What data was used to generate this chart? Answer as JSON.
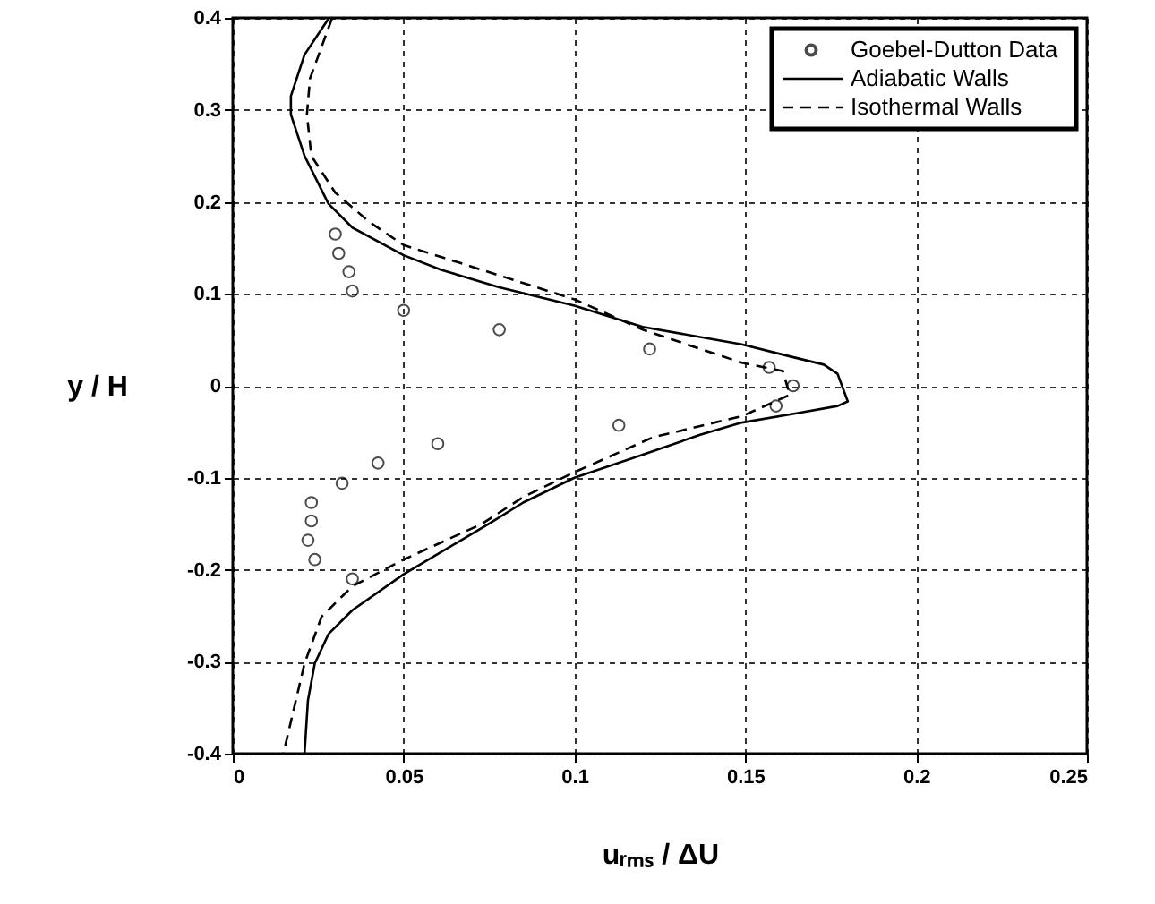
{
  "chart_data": {
    "type": "line",
    "xlabel": "uᵣₘₛ / ΔU",
    "ylabel": "y / H",
    "xlim": [
      0,
      0.25
    ],
    "ylim": [
      -0.4,
      0.4
    ],
    "xticks": [
      0,
      0.05,
      0.1,
      0.15,
      0.2,
      0.25
    ],
    "yticks": [
      -0.4,
      -0.3,
      -0.2,
      -0.1,
      0,
      0.1,
      0.2,
      0.3,
      0.4
    ],
    "grid": true,
    "legend": "top right",
    "series": [
      {
        "name": "Goebel-Dutton Data",
        "type": "scatter",
        "marker": "circle",
        "color": "#000000",
        "x": [
          0.03,
          0.031,
          0.034,
          0.035,
          0.05,
          0.078,
          0.122,
          0.157,
          0.164,
          0.159,
          0.113,
          0.06,
          0.0425,
          0.032,
          0.023,
          0.023,
          0.022,
          0.024,
          0.035
        ],
        "values": [
          0.165,
          0.144,
          0.124,
          0.103,
          0.082,
          0.061,
          0.04,
          0.02,
          0,
          -0.022,
          -0.043,
          -0.063,
          -0.084,
          -0.106,
          -0.127,
          -0.147,
          -0.168,
          -0.189,
          -0.21
        ]
      },
      {
        "name": "Adiabatic Walls",
        "line_style": "solid",
        "color": "#000000",
        "x": [
          0.028,
          0.021,
          0.017,
          0.017,
          0.021,
          0.028,
          0.035,
          0.05,
          0.061,
          0.078,
          0.1,
          0.12,
          0.149,
          0.163,
          0.173,
          0.177,
          0.18,
          0.177,
          0.165,
          0.149,
          0.137,
          0.12,
          0.1,
          0.085,
          0.075,
          0.05,
          0.035,
          0.028,
          0.024,
          0.022,
          0.021
        ],
        "values": [
          0.399,
          0.36,
          0.315,
          0.295,
          0.25,
          0.198,
          0.172,
          0.142,
          0.126,
          0.107,
          0.087,
          0.064,
          0.045,
          0.032,
          0.023,
          0.013,
          -0.017,
          -0.022,
          -0.03,
          -0.04,
          -0.053,
          -0.075,
          -0.1,
          -0.127,
          -0.15,
          -0.205,
          -0.244,
          -0.27,
          -0.302,
          -0.342,
          -0.4
        ]
      },
      {
        "name": "Isothermal Walls",
        "line_style": "dashed",
        "color": "#000000",
        "x": [
          0.029,
          0.0226,
          0.0217,
          0.023,
          0.03,
          0.04,
          0.05,
          0.078,
          0.1,
          0.12,
          0.149,
          0.161,
          0.163,
          0.149,
          0.123,
          0.1,
          0.085,
          0.073,
          0.05,
          0.035,
          0.026,
          0.021,
          0.0148
        ],
        "values": [
          0.399,
          0.334,
          0.295,
          0.25,
          0.21,
          0.178,
          0.153,
          0.12,
          0.094,
          0.061,
          0.025,
          0.016,
          -0.01,
          -0.033,
          -0.056,
          -0.094,
          -0.121,
          -0.15,
          -0.189,
          -0.218,
          -0.251,
          -0.302,
          -0.4
        ]
      }
    ]
  }
}
